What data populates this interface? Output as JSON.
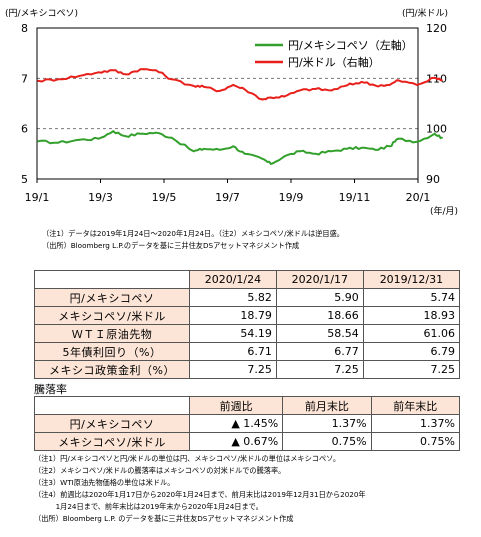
{
  "chart_data": {
    "type": "line",
    "left_axis_label": "(円/メキシコペソ)",
    "right_axis_label": "(円/米ドル)",
    "x_unit_label": "(年/月)",
    "x_tick_labels": [
      "19/1",
      "19/3",
      "19/5",
      "19/7",
      "19/9",
      "19/11",
      "20/1"
    ],
    "left_ticks": [
      "8",
      "7",
      "6",
      "5"
    ],
    "right_ticks": [
      "120",
      "110",
      "100",
      "90"
    ],
    "left_ylim": [
      5,
      8
    ],
    "right_ylim": [
      90,
      120
    ],
    "grid": "horizontal dashed",
    "legend_position": "top-right",
    "series": [
      {
        "name": "円/メキシコペソ（左軸）",
        "axis": "left",
        "color": "#33a02c",
        "x": [
          "2019-01-02",
          "2019-01-21",
          "2019-02-11",
          "2019-03-01",
          "2019-03-15",
          "2019-03-27",
          "2019-04-10",
          "2019-04-25",
          "2019-05-10",
          "2019-05-31",
          "2019-06-10",
          "2019-06-25",
          "2019-07-08",
          "2019-07-19",
          "2019-08-05",
          "2019-08-13",
          "2019-08-26",
          "2019-09-10",
          "2019-09-25",
          "2019-10-10",
          "2019-10-25",
          "2019-11-08",
          "2019-11-21",
          "2019-12-05",
          "2019-12-13",
          "2019-12-31",
          "2020-01-17",
          "2020-01-24"
        ],
        "y": [
          5.75,
          5.72,
          5.78,
          5.8,
          5.95,
          5.85,
          5.9,
          5.92,
          5.82,
          5.55,
          5.6,
          5.58,
          5.65,
          5.5,
          5.4,
          5.3,
          5.45,
          5.55,
          5.5,
          5.55,
          5.6,
          5.62,
          5.58,
          5.65,
          5.8,
          5.74,
          5.9,
          5.82
        ]
      },
      {
        "name": "円/米ドル（右軸）",
        "axis": "right",
        "color": "#e8201b",
        "x": [
          "2019-01-02",
          "2019-01-21",
          "2019-02-11",
          "2019-03-01",
          "2019-03-15",
          "2019-03-27",
          "2019-04-10",
          "2019-04-25",
          "2019-05-10",
          "2019-05-31",
          "2019-06-10",
          "2019-06-25",
          "2019-07-08",
          "2019-07-19",
          "2019-08-05",
          "2019-08-13",
          "2019-08-26",
          "2019-09-10",
          "2019-09-25",
          "2019-10-10",
          "2019-10-25",
          "2019-11-08",
          "2019-11-21",
          "2019-12-05",
          "2019-12-13",
          "2019-12-31",
          "2020-01-17",
          "2020-01-24"
        ],
        "y": [
          109.5,
          109.8,
          110.5,
          111.2,
          111.6,
          110.8,
          111.8,
          111.6,
          109.8,
          108.5,
          108.3,
          107.5,
          108.7,
          107.8,
          105.8,
          106.2,
          106.4,
          107.6,
          107.9,
          107.6,
          108.6,
          109.3,
          108.6,
          108.7,
          109.6,
          108.7,
          110.1,
          109.6
        ]
      }
    ]
  },
  "notes_top": [
    "（注1）データは2019年1月24日～2020年1月24日。（注2）メキシコペソ/米ドルは逆目盛。",
    "（出所）Bloomberg L.P.のデータを基に三井住友DSアセットマネジメント作成"
  ],
  "table1": {
    "headers": [
      "2020/1/24",
      "2020/1/17",
      "2019/12/31"
    ],
    "rows": [
      {
        "label": "円/メキシコペソ",
        "values": [
          "5.82",
          "5.90",
          "5.74"
        ]
      },
      {
        "label": "メキシコペソ/米ドル",
        "values": [
          "18.79",
          "18.66",
          "18.93"
        ]
      },
      {
        "label": "ＷＴＩ原油先物",
        "values": [
          "54.19",
          "58.54",
          "61.06"
        ]
      },
      {
        "label": "5年債利回り（%）",
        "values": [
          "6.71",
          "6.77",
          "6.79"
        ]
      },
      {
        "label": "メキシコ政策金利（%）",
        "values": [
          "7.25",
          "7.25",
          "7.25"
        ]
      }
    ]
  },
  "table2": {
    "title": "騰落率",
    "headers": [
      "前週比",
      "前月末比",
      "前年末比"
    ],
    "rows": [
      {
        "label": "円/メキシコペソ",
        "values": [
          "▲ 1.45%",
          "1.37%",
          "1.37%"
        ]
      },
      {
        "label": "メキシコペソ/米ドル",
        "values": [
          "▲ 0.67%",
          "0.75%",
          "0.75%"
        ]
      }
    ]
  },
  "notes_bottom": [
    "（注1）円/メキシコペソと円/米ドルの単位は円、メキシコペソ/米ドルの単位はメキシコペソ。",
    "（注2）メキシコペソ/米ドルの騰落率はメキシコペソの対米ドルでの騰落率。",
    "（注3）WTI原油先物価格の単位は米ドル。",
    "（注4）前週比は2020年1月17日から2020年1月24日まで、前月末比は2019年12月31日から2020年",
    "　　　1月24日まで、前年末比は2019年末から2020年1月24日まで。",
    "（出所）Bloomberg L.P. のデータを基に三井住友DSアセットマネジメント作成"
  ]
}
